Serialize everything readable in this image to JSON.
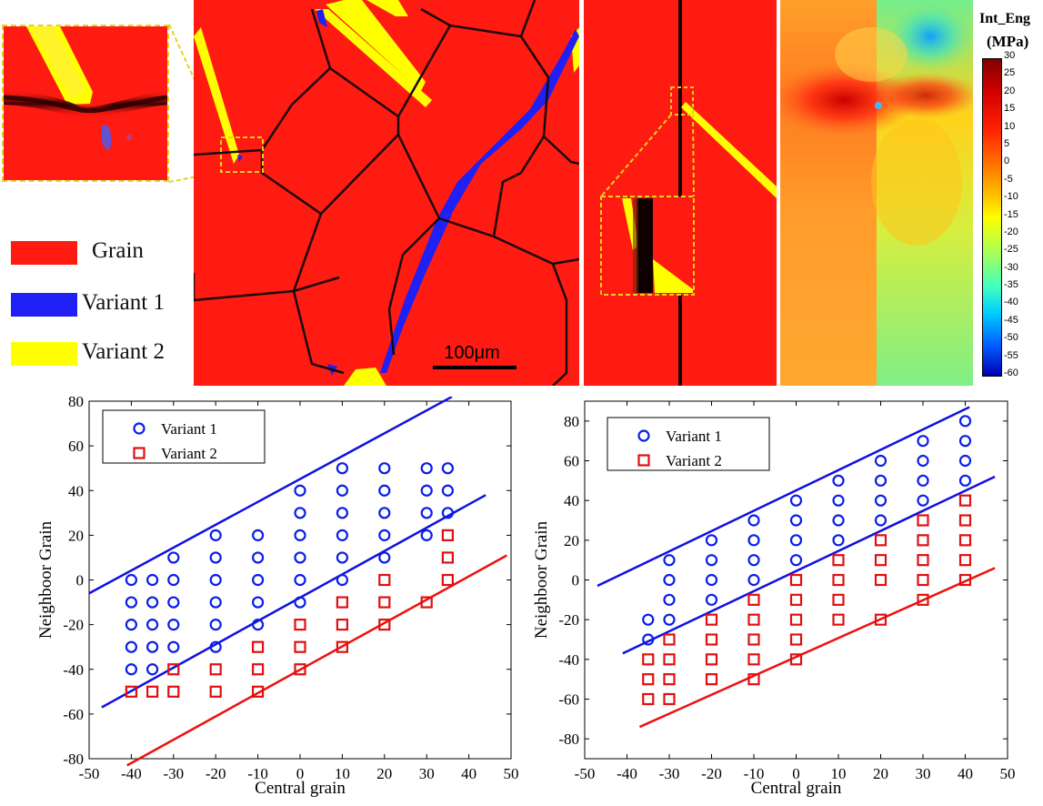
{
  "legend": {
    "items": [
      {
        "label": "Grain",
        "color": "#ff1a12"
      },
      {
        "label": "Variant 1",
        "color": "#1f20f5"
      },
      {
        "label": "Variant 2",
        "color": "#ffff00"
      }
    ]
  },
  "microstructure": {
    "scale_bar_label": "100μm"
  },
  "colorbar": {
    "title_line1": "Int_Eng",
    "title_line2": "(MPa)",
    "ticks": [
      "30",
      "25",
      "20",
      "15",
      "10",
      "5",
      "0",
      "-5",
      "-10",
      "-15",
      "-20",
      "-25",
      "-30",
      "-35",
      "-40",
      "-45",
      "-50",
      "-55",
      "-60"
    ]
  },
  "colors": {
    "grain": "#ff1a12",
    "variant1": "#1f20f5",
    "variant2": "#ffff00",
    "outline_yellow": "#e8d21a",
    "variant1_marker": "#0a1ee8",
    "variant2_marker": "#e01010"
  },
  "chart_data": [
    {
      "type": "scatter",
      "xlabel": "Central grain",
      "ylabel": "Neighboor Grain",
      "xlim": [
        -50,
        50
      ],
      "ylim": [
        -80,
        80
      ],
      "xticks": [
        -50,
        -40,
        -30,
        -20,
        -10,
        0,
        10,
        20,
        30,
        40,
        50
      ],
      "yticks": [
        80,
        60,
        40,
        20,
        0,
        -20,
        -40,
        -60,
        -80
      ],
      "legend_position": "top-left",
      "series": [
        {
          "name": "Variant 1",
          "marker": "circle",
          "color": "#0a1ee8",
          "points": [
            [
              -40,
              0
            ],
            [
              -40,
              -10
            ],
            [
              -40,
              -20
            ],
            [
              -40,
              -30
            ],
            [
              -40,
              -40
            ],
            [
              -35,
              0
            ],
            [
              -35,
              -10
            ],
            [
              -35,
              -20
            ],
            [
              -35,
              -30
            ],
            [
              -35,
              -40
            ],
            [
              -30,
              10
            ],
            [
              -30,
              0
            ],
            [
              -30,
              -10
            ],
            [
              -30,
              -20
            ],
            [
              -30,
              -30
            ],
            [
              -20,
              20
            ],
            [
              -20,
              10
            ],
            [
              -20,
              0
            ],
            [
              -20,
              -10
            ],
            [
              -20,
              -20
            ],
            [
              -20,
              -30
            ],
            [
              -10,
              20
            ],
            [
              -10,
              10
            ],
            [
              -10,
              0
            ],
            [
              -10,
              -10
            ],
            [
              -10,
              -20
            ],
            [
              0,
              40
            ],
            [
              0,
              30
            ],
            [
              0,
              20
            ],
            [
              0,
              10
            ],
            [
              0,
              0
            ],
            [
              0,
              -10
            ],
            [
              10,
              50
            ],
            [
              10,
              40
            ],
            [
              10,
              30
            ],
            [
              10,
              20
            ],
            [
              10,
              10
            ],
            [
              10,
              0
            ],
            [
              20,
              50
            ],
            [
              20,
              40
            ],
            [
              20,
              30
            ],
            [
              20,
              20
            ],
            [
              20,
              10
            ],
            [
              30,
              50
            ],
            [
              30,
              40
            ],
            [
              30,
              30
            ],
            [
              30,
              20
            ],
            [
              35,
              50
            ],
            [
              35,
              40
            ],
            [
              35,
              30
            ]
          ]
        },
        {
          "name": "Variant 2",
          "marker": "square",
          "color": "#e01010",
          "points": [
            [
              -40,
              -50
            ],
            [
              -35,
              -50
            ],
            [
              -30,
              -40
            ],
            [
              -30,
              -50
            ],
            [
              -20,
              -40
            ],
            [
              -20,
              -50
            ],
            [
              -10,
              -30
            ],
            [
              -10,
              -40
            ],
            [
              -10,
              -50
            ],
            [
              0,
              -20
            ],
            [
              0,
              -30
            ],
            [
              0,
              -40
            ],
            [
              10,
              -10
            ],
            [
              10,
              -20
            ],
            [
              10,
              -30
            ],
            [
              20,
              0
            ],
            [
              20,
              -10
            ],
            [
              20,
              -20
            ],
            [
              30,
              -10
            ],
            [
              35,
              20
            ],
            [
              35,
              10
            ],
            [
              35,
              0
            ]
          ]
        }
      ],
      "lines": [
        {
          "color": "#1010e0",
          "x": [
            -50,
            36
          ],
          "y": [
            -6,
            82
          ]
        },
        {
          "color": "#1010e0",
          "x": [
            -47,
            44
          ],
          "y": [
            -57,
            38
          ]
        },
        {
          "color": "#ee1010",
          "x": [
            -41,
            49
          ],
          "y": [
            -83,
            11
          ]
        }
      ]
    },
    {
      "type": "scatter",
      "xlabel": "Central grain",
      "ylabel": "Neighboor Grain",
      "xlim": [
        -50,
        50
      ],
      "ylim": [
        -90,
        90
      ],
      "xticks": [
        -50,
        -40,
        -30,
        -20,
        -10,
        0,
        10,
        20,
        30,
        40,
        50
      ],
      "yticks": [
        80,
        60,
        40,
        20,
        0,
        -20,
        -40,
        -60,
        -80
      ],
      "legend_position": "top-left",
      "series": [
        {
          "name": "Variant 1",
          "marker": "circle",
          "color": "#0a1ee8",
          "points": [
            [
              -35,
              -20
            ],
            [
              -35,
              -30
            ],
            [
              -30,
              10
            ],
            [
              -30,
              0
            ],
            [
              -30,
              -10
            ],
            [
              -30,
              -20
            ],
            [
              -20,
              20
            ],
            [
              -20,
              10
            ],
            [
              -20,
              0
            ],
            [
              -20,
              -10
            ],
            [
              -10,
              30
            ],
            [
              -10,
              20
            ],
            [
              -10,
              10
            ],
            [
              -10,
              0
            ],
            [
              0,
              40
            ],
            [
              0,
              30
            ],
            [
              0,
              20
            ],
            [
              0,
              10
            ],
            [
              10,
              50
            ],
            [
              10,
              40
            ],
            [
              10,
              30
            ],
            [
              10,
              20
            ],
            [
              20,
              60
            ],
            [
              20,
              50
            ],
            [
              20,
              40
            ],
            [
              20,
              30
            ],
            [
              30,
              70
            ],
            [
              30,
              60
            ],
            [
              30,
              50
            ],
            [
              30,
              40
            ],
            [
              40,
              80
            ],
            [
              40,
              70
            ],
            [
              40,
              60
            ],
            [
              40,
              50
            ]
          ]
        },
        {
          "name": "Variant 2",
          "marker": "square",
          "color": "#e01010",
          "points": [
            [
              -35,
              -40
            ],
            [
              -35,
              -50
            ],
            [
              -35,
              -60
            ],
            [
              -30,
              -30
            ],
            [
              -30,
              -40
            ],
            [
              -30,
              -50
            ],
            [
              -30,
              -60
            ],
            [
              -20,
              -20
            ],
            [
              -20,
              -30
            ],
            [
              -20,
              -40
            ],
            [
              -20,
              -50
            ],
            [
              -10,
              -10
            ],
            [
              -10,
              -20
            ],
            [
              -10,
              -30
            ],
            [
              -10,
              -40
            ],
            [
              -10,
              -50
            ],
            [
              0,
              0
            ],
            [
              0,
              -10
            ],
            [
              0,
              -20
            ],
            [
              0,
              -30
            ],
            [
              0,
              -40
            ],
            [
              10,
              10
            ],
            [
              10,
              0
            ],
            [
              10,
              -10
            ],
            [
              10,
              -20
            ],
            [
              20,
              20
            ],
            [
              20,
              10
            ],
            [
              20,
              0
            ],
            [
              20,
              -20
            ],
            [
              30,
              30
            ],
            [
              30,
              20
            ],
            [
              30,
              10
            ],
            [
              30,
              0
            ],
            [
              30,
              -10
            ],
            [
              40,
              40
            ],
            [
              40,
              30
            ],
            [
              40,
              20
            ],
            [
              40,
              10
            ],
            [
              40,
              0
            ]
          ]
        }
      ],
      "lines": [
        {
          "color": "#1010e0",
          "x": [
            -47,
            41
          ],
          "y": [
            -3,
            87
          ]
        },
        {
          "color": "#1010e0",
          "x": [
            -41,
            47
          ],
          "y": [
            -37,
            52
          ]
        },
        {
          "color": "#ee1010",
          "x": [
            -37,
            47
          ],
          "y": [
            -74,
            6
          ]
        }
      ]
    }
  ]
}
